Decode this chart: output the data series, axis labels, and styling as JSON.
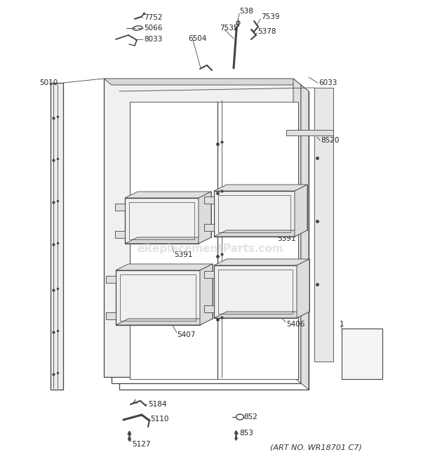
{
  "bg_color": "#ffffff",
  "art_no": "(ART NO. WR18701 C7)",
  "watermark": "eReplacementParts.com",
  "line_color": "#444444",
  "watermark_color": "#cccccc",
  "label_fontsize": 7.5,
  "art_no_fontsize": 8.0
}
